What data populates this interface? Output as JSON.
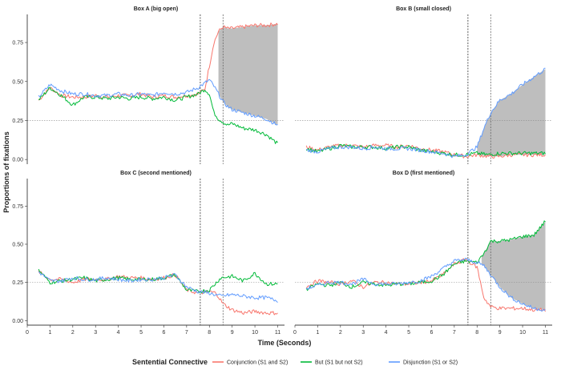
{
  "chart_data": {
    "type": "line",
    "ylabel": "Proportions of fixations",
    "xlabel": "Time (Seconds)",
    "xlim": [
      0,
      11.3
    ],
    "ylim": [
      -0.03,
      0.93
    ],
    "x_ticks": [
      0,
      1,
      2,
      3,
      4,
      5,
      6,
      7,
      8,
      9,
      10,
      11
    ],
    "x_tick_labels": [
      "0",
      "1",
      "2",
      "3",
      "4",
      "5",
      "6",
      "7",
      "8",
      "9",
      "10",
      "11"
    ],
    "y_ticks": [
      0,
      0.25,
      0.5,
      0.75
    ],
    "y_tick_labels": [
      "0.00",
      "0.25",
      "0.50",
      "0.75"
    ],
    "reference_lines": {
      "horizontal_y": 0.25,
      "vertical_x": [
        7.6,
        8.6
      ]
    },
    "legend": {
      "title": "Sentential Connective",
      "position": "bottom",
      "entries": [
        {
          "name": "Conjunction (S1 and S2)",
          "color": "#F8766D"
        },
        {
          "name": "But (S1 but not S2)",
          "color": "#00BA38"
        },
        {
          "name": "Disjunction (S1 or S2)",
          "color": "#619CFF"
        }
      ]
    },
    "shade_color": "#BEBEBE",
    "panels": [
      {
        "title": "Box A (big open)",
        "shaded": {
          "from": 8.4,
          "to": 11.0,
          "upper": "Conjunction (S1 and S2)",
          "lower": "Disjunction (S1 or S2)"
        },
        "series": [
          {
            "name": "Conjunction (S1 and S2)",
            "x": [
              0.5,
              1,
              1.5,
              2,
              2.5,
              3,
              3.5,
              4,
              4.5,
              5,
              5.5,
              6,
              6.5,
              7,
              7.5,
              7.8,
              8,
              8.2,
              8.4,
              8.6,
              8.8,
              9,
              9.5,
              10,
              10.5,
              11
            ],
            "y": [
              0.38,
              0.46,
              0.41,
              0.4,
              0.4,
              0.41,
              0.4,
              0.41,
              0.41,
              0.42,
              0.4,
              0.41,
              0.4,
              0.41,
              0.42,
              0.45,
              0.6,
              0.75,
              0.82,
              0.85,
              0.84,
              0.84,
              0.85,
              0.86,
              0.86,
              0.87
            ]
          },
          {
            "name": "But (S1 but not S2)",
            "x": [
              0.5,
              1,
              1.5,
              2,
              2.5,
              3,
              3.5,
              4,
              4.5,
              5,
              5.5,
              6,
              6.5,
              7,
              7.5,
              7.8,
              8,
              8.2,
              8.4,
              8.6,
              8.8,
              9,
              9.5,
              10,
              10.5,
              11
            ],
            "y": [
              0.38,
              0.46,
              0.41,
              0.35,
              0.4,
              0.4,
              0.39,
              0.4,
              0.39,
              0.4,
              0.39,
              0.4,
              0.38,
              0.4,
              0.42,
              0.45,
              0.42,
              0.3,
              0.26,
              0.24,
              0.22,
              0.23,
              0.2,
              0.19,
              0.16,
              0.1
            ]
          },
          {
            "name": "Disjunction (S1 or S2)",
            "x": [
              0.5,
              1,
              1.5,
              2,
              2.5,
              3,
              3.5,
              4,
              4.5,
              5,
              5.5,
              6,
              6.5,
              7,
              7.5,
              7.8,
              8,
              8.2,
              8.4,
              8.6,
              8.8,
              9,
              9.5,
              10,
              10.5,
              11
            ],
            "y": [
              0.4,
              0.48,
              0.44,
              0.42,
              0.42,
              0.41,
              0.41,
              0.42,
              0.41,
              0.42,
              0.41,
              0.43,
              0.42,
              0.43,
              0.46,
              0.49,
              0.51,
              0.47,
              0.42,
              0.37,
              0.34,
              0.32,
              0.3,
              0.28,
              0.26,
              0.22
            ]
          }
        ]
      },
      {
        "title": "Box B (small closed)",
        "shaded": {
          "from": 8.0,
          "to": 11.0,
          "upper": "Disjunction (S1 or S2)",
          "lower": "Conjunction (S1 and S2)"
        },
        "series": [
          {
            "name": "Conjunction (S1 and S2)",
            "x": [
              0.5,
              1,
              1.5,
              2,
              2.5,
              3,
              3.5,
              4,
              4.5,
              5,
              5.5,
              6,
              6.5,
              7,
              7.5,
              8,
              8.5,
              9,
              9.5,
              10,
              10.5,
              11
            ],
            "y": [
              0.08,
              0.06,
              0.08,
              0.09,
              0.09,
              0.08,
              0.09,
              0.09,
              0.08,
              0.09,
              0.07,
              0.06,
              0.05,
              0.03,
              0.02,
              0.03,
              0.02,
              0.02,
              0.03,
              0.03,
              0.03,
              0.03
            ]
          },
          {
            "name": "But (S1 but not S2)",
            "x": [
              0.5,
              1,
              1.5,
              2,
              2.5,
              3,
              3.5,
              4,
              4.5,
              5,
              5.5,
              6,
              6.5,
              7,
              7.5,
              8,
              8.5,
              9,
              9.5,
              10,
              10.5,
              11
            ],
            "y": [
              0.07,
              0.05,
              0.07,
              0.09,
              0.08,
              0.08,
              0.08,
              0.07,
              0.08,
              0.08,
              0.06,
              0.05,
              0.04,
              0.03,
              0.03,
              0.04,
              0.03,
              0.04,
              0.04,
              0.04,
              0.04,
              0.04
            ]
          },
          {
            "name": "Disjunction (S1 or S2)",
            "x": [
              0.5,
              1,
              1.5,
              2,
              2.5,
              3,
              3.5,
              4,
              4.5,
              5,
              5.5,
              6,
              6.5,
              7,
              7.5,
              8,
              8.3,
              8.6,
              9,
              9.5,
              10,
              10.5,
              11
            ],
            "y": [
              0.06,
              0.05,
              0.07,
              0.08,
              0.08,
              0.07,
              0.08,
              0.07,
              0.07,
              0.07,
              0.06,
              0.05,
              0.04,
              0.02,
              0.03,
              0.08,
              0.2,
              0.3,
              0.38,
              0.42,
              0.48,
              0.53,
              0.58
            ]
          }
        ]
      },
      {
        "title": "Box C (second mentioned)",
        "shaded": null,
        "series": [
          {
            "name": "Conjunction (S1 and S2)",
            "x": [
              0.5,
              1,
              1.5,
              2,
              2.5,
              3,
              3.5,
              4,
              4.5,
              5,
              5.5,
              6,
              6.5,
              7,
              7.5,
              8,
              8.3,
              8.6,
              9,
              9.5,
              10,
              10.5,
              11
            ],
            "y": [
              0.32,
              0.27,
              0.27,
              0.25,
              0.27,
              0.27,
              0.27,
              0.29,
              0.28,
              0.28,
              0.27,
              0.28,
              0.3,
              0.2,
              0.18,
              0.19,
              0.18,
              0.11,
              0.07,
              0.05,
              0.06,
              0.05,
              0.05
            ]
          },
          {
            "name": "But (S1 but not S2)",
            "x": [
              0.5,
              1,
              1.5,
              2,
              2.5,
              3,
              3.5,
              4,
              4.5,
              5,
              5.5,
              6,
              6.5,
              7,
              7.5,
              8,
              8.5,
              9,
              9.5,
              10,
              10.5,
              11
            ],
            "y": [
              0.33,
              0.25,
              0.26,
              0.27,
              0.28,
              0.26,
              0.27,
              0.28,
              0.27,
              0.27,
              0.27,
              0.28,
              0.3,
              0.2,
              0.19,
              0.2,
              0.28,
              0.29,
              0.26,
              0.31,
              0.24,
              0.24
            ]
          },
          {
            "name": "Disjunction (S1 or S2)",
            "x": [
              0.5,
              1,
              1.5,
              2,
              2.5,
              3,
              3.5,
              4,
              4.5,
              5,
              5.5,
              6,
              6.5,
              7,
              7.5,
              8,
              8.5,
              9,
              9.5,
              10,
              10.5,
              11
            ],
            "y": [
              0.32,
              0.26,
              0.26,
              0.28,
              0.27,
              0.27,
              0.28,
              0.27,
              0.26,
              0.27,
              0.27,
              0.28,
              0.3,
              0.22,
              0.19,
              0.18,
              0.16,
              0.17,
              0.16,
              0.15,
              0.15,
              0.13
            ]
          }
        ]
      },
      {
        "title": "Box D (first mentioned)",
        "shaded": {
          "from": 8.2,
          "to": 11.0,
          "upper": "But (S1 but not S2)",
          "lower": "Disjunction (S1 or S2)"
        },
        "series": [
          {
            "name": "Conjunction (S1 and S2)",
            "x": [
              0.5,
              1,
              1.5,
              2,
              2.5,
              3,
              3.5,
              4,
              4.5,
              5,
              5.5,
              6,
              6.5,
              7,
              7.5,
              8,
              8.3,
              8.6,
              9,
              9.5,
              10,
              10.5,
              11
            ],
            "y": [
              0.22,
              0.26,
              0.25,
              0.24,
              0.26,
              0.22,
              0.25,
              0.25,
              0.24,
              0.24,
              0.25,
              0.26,
              0.3,
              0.37,
              0.4,
              0.35,
              0.15,
              0.09,
              0.08,
              0.08,
              0.08,
              0.07,
              0.07
            ]
          },
          {
            "name": "But (S1 but not S2)",
            "x": [
              0.5,
              1,
              1.5,
              2,
              2.5,
              3,
              3.5,
              4,
              4.5,
              5,
              5.5,
              6,
              6.5,
              7,
              7.5,
              8,
              8.3,
              8.6,
              9,
              9.5,
              10,
              10.5,
              11
            ],
            "y": [
              0.2,
              0.24,
              0.23,
              0.25,
              0.22,
              0.25,
              0.24,
              0.23,
              0.24,
              0.24,
              0.25,
              0.26,
              0.3,
              0.37,
              0.39,
              0.38,
              0.44,
              0.52,
              0.52,
              0.53,
              0.55,
              0.56,
              0.65
            ]
          },
          {
            "name": "Disjunction (S1 or S2)",
            "x": [
              0.5,
              1,
              1.5,
              2,
              2.5,
              3,
              3.5,
              4,
              4.5,
              5,
              5.5,
              6,
              6.5,
              7,
              7.5,
              8,
              8.3,
              8.6,
              9,
              9.5,
              10,
              10.5,
              11
            ],
            "y": [
              0.21,
              0.23,
              0.25,
              0.25,
              0.24,
              0.27,
              0.24,
              0.24,
              0.24,
              0.25,
              0.26,
              0.29,
              0.34,
              0.39,
              0.4,
              0.38,
              0.36,
              0.3,
              0.22,
              0.15,
              0.11,
              0.08,
              0.07
            ]
          }
        ]
      }
    ]
  }
}
